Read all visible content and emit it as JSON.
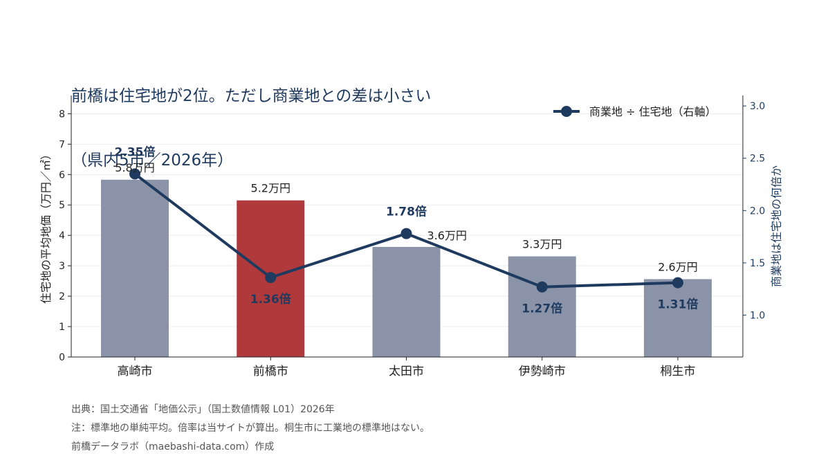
{
  "title_lines": [
    "前橋は住宅地が2位。ただし商業地との差は小さい",
    "（県内5市／2026年）"
  ],
  "chart_data": {
    "type": "bar+line",
    "categories": [
      "高崎市",
      "前橋市",
      "太田市",
      "伊勢崎市",
      "桐生市"
    ],
    "bar_series": {
      "values": [
        5.83,
        5.15,
        3.62,
        3.31,
        2.56
      ],
      "labels": [
        "5.8万円",
        "5.2万円",
        "3.6万円",
        "3.3万円",
        "2.6万円"
      ],
      "colors": [
        "#8a93a8",
        "#b0393b",
        "#8a93a8",
        "#8a93a8",
        "#8a93a8"
      ]
    },
    "line_series": {
      "name": "商業地 ÷ 住宅地（右軸）",
      "values": [
        2.35,
        1.36,
        1.78,
        1.27,
        1.31
      ],
      "labels": [
        "2.35倍",
        "1.36倍",
        "1.78倍",
        "1.27倍",
        "1.31倍"
      ],
      "color": "#1f3a5f"
    },
    "ylabel_left": "住宅地の平均地価（万円／㎡）",
    "ylabel_right": "商業地は住宅地の何倍か",
    "ylim_left": [
      0,
      8.6
    ],
    "yticks_left": [
      "0",
      "1",
      "2",
      "3",
      "4",
      "5",
      "6",
      "7",
      "8"
    ],
    "ylim_right": [
      0.6,
      3.1
    ],
    "yticks_right": [
      "1.0",
      "1.5",
      "2.0",
      "2.5",
      "3.0"
    ],
    "grid": true,
    "legend_position": "top-right"
  },
  "footnotes": [
    "出典：国土交通省「地価公示」（国土数値情報 L01）2026年",
    "注：標準地の単純平均。倍率は当サイトが算出。桐生市に工業地の標準地はない。",
    "前橋データラボ（maebashi-data.com）作成"
  ]
}
